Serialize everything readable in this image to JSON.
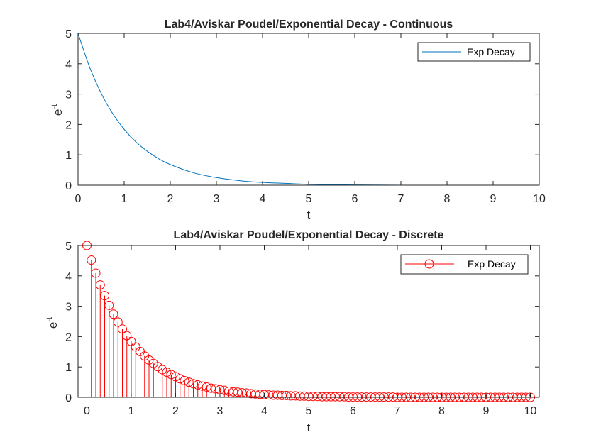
{
  "chart_data": [
    {
      "type": "line",
      "title": "Lab4/Aviskar Poudel/Exponential Decay - Continuous",
      "xlabel": "t",
      "ylabel_base": "e",
      "ylabel_exp": "-t",
      "xlim": [
        0,
        10
      ],
      "ylim": [
        0,
        5
      ],
      "xticks": [
        "0",
        "1",
        "2",
        "3",
        "4",
        "5",
        "6",
        "7",
        "8",
        "9",
        "10"
      ],
      "yticks": [
        "0",
        "1",
        "2",
        "3",
        "4",
        "5"
      ],
      "grid": false,
      "legend": "top-right",
      "color": "#0072BD",
      "series": [
        {
          "name": "Exp Decay",
          "x": [
            0,
            0.25,
            0.5,
            0.75,
            1,
            1.25,
            1.5,
            1.75,
            2,
            2.5,
            3,
            3.5,
            4,
            4.5,
            5,
            6,
            7,
            8,
            9,
            10
          ],
          "y": [
            5.0,
            3.89,
            3.03,
            2.36,
            1.84,
            1.43,
            1.12,
            0.87,
            0.68,
            0.41,
            0.25,
            0.15,
            0.09,
            0.06,
            0.03,
            0.01,
            0.0,
            0.0,
            0.0,
            0.0
          ]
        }
      ]
    },
    {
      "type": "stem",
      "title": "Lab4/Aviskar Poudel/Exponential Decay - Discrete",
      "xlabel": "t",
      "ylabel_base": "e",
      "ylabel_exp": "-t",
      "xlim": [
        -0.2,
        10.2
      ],
      "ylim": [
        0,
        5
      ],
      "xticks": [
        "0",
        "1",
        "2",
        "3",
        "4",
        "5",
        "6",
        "7",
        "8",
        "9",
        "10"
      ],
      "yticks": [
        "0",
        "1",
        "2",
        "3",
        "4",
        "5"
      ],
      "grid": false,
      "legend": "top-right",
      "color": "#FF0000",
      "marker": "circle",
      "series": [
        {
          "name": "Exp Decay",
          "x": [
            0,
            0.1,
            0.2,
            0.3,
            0.4,
            0.5,
            0.6,
            0.7,
            0.8,
            0.9,
            1.0,
            1.1,
            1.2,
            1.3,
            1.4,
            1.5,
            1.6,
            1.7,
            1.8,
            1.9,
            2.0,
            2.1,
            2.2,
            2.3,
            2.4,
            2.5,
            2.6,
            2.7,
            2.8,
            2.9,
            3.0,
            3.1,
            3.2,
            3.3,
            3.4,
            3.5,
            3.6,
            3.7,
            3.8,
            3.9,
            4.0,
            4.1,
            4.2,
            4.3,
            4.4,
            4.5,
            4.6,
            4.7,
            4.8,
            4.9,
            5.0,
            5.1,
            5.2,
            5.3,
            5.4,
            5.5,
            5.6,
            5.7,
            5.8,
            5.9,
            6.0,
            6.1,
            6.2,
            6.3,
            6.4,
            6.5,
            6.6,
            6.7,
            6.8,
            6.9,
            7.0,
            7.1,
            7.2,
            7.3,
            7.4,
            7.5,
            7.6,
            7.7,
            7.8,
            7.9,
            8.0,
            8.1,
            8.2,
            8.3,
            8.4,
            8.5,
            8.6,
            8.7,
            8.8,
            8.9,
            9.0,
            9.1,
            9.2,
            9.3,
            9.4,
            9.5,
            9.6,
            9.7,
            9.8,
            9.9,
            10.0
          ],
          "y": [
            5.0,
            4.52,
            4.09,
            3.7,
            3.35,
            3.03,
            2.74,
            2.48,
            2.25,
            2.03,
            1.84,
            1.66,
            1.51,
            1.36,
            1.23,
            1.12,
            1.01,
            0.91,
            0.83,
            0.75,
            0.68,
            0.61,
            0.55,
            0.5,
            0.45,
            0.41,
            0.37,
            0.34,
            0.3,
            0.28,
            0.25,
            0.23,
            0.2,
            0.18,
            0.17,
            0.15,
            0.14,
            0.12,
            0.11,
            0.1,
            0.09,
            0.08,
            0.07,
            0.07,
            0.06,
            0.06,
            0.05,
            0.05,
            0.04,
            0.04,
            0.03,
            0.03,
            0.03,
            0.02,
            0.02,
            0.02,
            0.02,
            0.02,
            0.02,
            0.01,
            0.01,
            0.01,
            0.01,
            0.01,
            0.01,
            0.01,
            0.01,
            0.01,
            0.01,
            0.01,
            0.0,
            0.0,
            0.0,
            0.0,
            0.0,
            0.0,
            0.0,
            0.0,
            0.0,
            0.0,
            0.0,
            0.0,
            0.0,
            0.0,
            0.0,
            0.0,
            0.0,
            0.0,
            0.0,
            0.0,
            0.0,
            0.0,
            0.0,
            0.0,
            0.0,
            0.0,
            0.0,
            0.0,
            0.0,
            0.0,
            0.0
          ]
        }
      ]
    }
  ]
}
